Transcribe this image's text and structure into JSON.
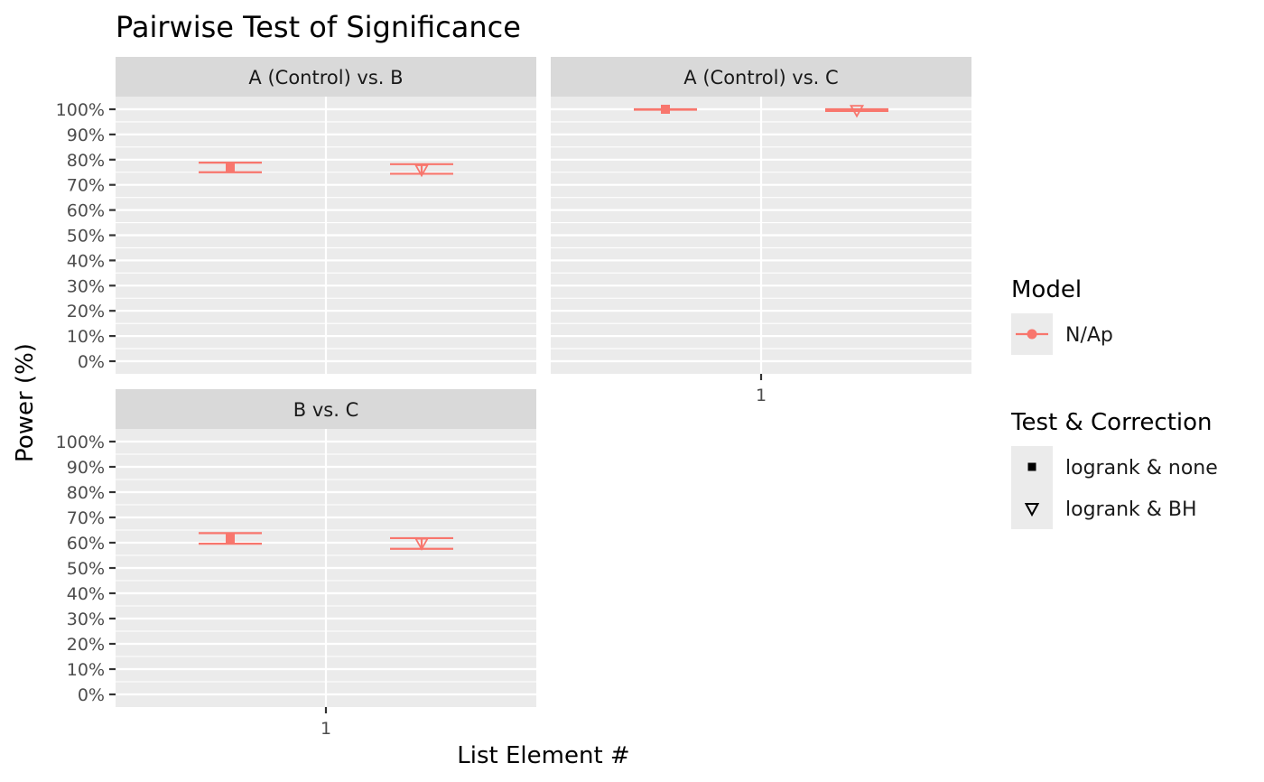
{
  "chart_data": {
    "type": "scatter",
    "title": "Pairwise Test of Significance",
    "xlabel": "List Element #",
    "ylabel": "Power (%)",
    "x_categories": [
      "1"
    ],
    "ylim": [
      0,
      100
    ],
    "y_ticks": [
      "0%",
      "10%",
      "20%",
      "30%",
      "40%",
      "50%",
      "60%",
      "70%",
      "80%",
      "90%",
      "100%"
    ],
    "grid": true,
    "facets": [
      {
        "label": "A (Control) vs. B",
        "points": [
          {
            "test": "logrank & none",
            "value": 76.8,
            "lower": 75.0,
            "upper": 78.8
          },
          {
            "test": "logrank & BH",
            "value": 76.0,
            "lower": 74.4,
            "upper": 78.2
          }
        ]
      },
      {
        "label": "A (Control) vs. C",
        "points": [
          {
            "test": "logrank & none",
            "value": 100.0,
            "lower": 99.8,
            "upper": 100.0
          },
          {
            "test": "logrank & BH",
            "value": 99.6,
            "lower": 99.3,
            "upper": 100.0
          }
        ]
      },
      {
        "label": "B vs. C",
        "points": [
          {
            "test": "logrank & none",
            "value": 61.6,
            "lower": 59.6,
            "upper": 63.8
          },
          {
            "test": "logrank & BH",
            "value": 59.8,
            "lower": 57.6,
            "upper": 61.8
          }
        ]
      }
    ],
    "legends": {
      "model": {
        "title": "Model",
        "items": [
          {
            "label": "N/Ap",
            "color": "#F8766D"
          }
        ]
      },
      "test": {
        "title": "Test & Correction",
        "items": [
          {
            "label": "logrank & none",
            "shape": "square"
          },
          {
            "label": "logrank & BH",
            "shape": "triangle-down"
          }
        ]
      },
      "placement": "right"
    },
    "colors": {
      "series": "#F8766D",
      "panel_bg": "#EBEBEB",
      "strip_bg": "#D9D9D9",
      "grid": "#FFFFFF"
    }
  }
}
